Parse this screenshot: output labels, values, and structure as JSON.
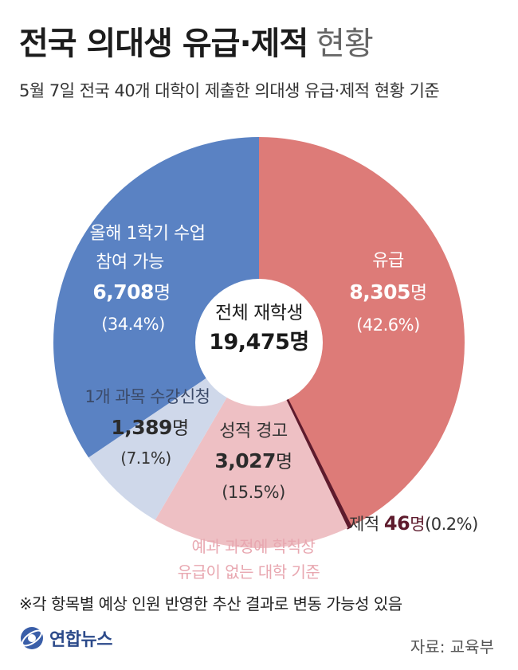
{
  "header": {
    "title_bold": "전국 의대생 유급·제적",
    "title_light": "현황",
    "subtitle": "5월 7일 전국 40개 대학이 제출한 의대생 유급·제적 현황 기준"
  },
  "colors": {
    "yugeup": "#dd7b78",
    "jejeok": "#5e1b2d",
    "warning": "#eec0c4",
    "one_course": "#cfd8ea",
    "participate": "#5a82c3"
  },
  "chart_data": {
    "type": "pie",
    "style": "donut",
    "center_label": "전체 재학생",
    "center_value": "19,475명",
    "total": 19475,
    "slices": [
      {
        "key": "yugeup",
        "label": "유급",
        "value": 8305,
        "value_text": "8,305",
        "unit": "명",
        "percent_text": "(42.6%)",
        "color": "#dd7b78"
      },
      {
        "key": "jejeok",
        "label": "제적",
        "value": 46,
        "value_text": "46",
        "unit": "명",
        "percent_text": "(0.2%)",
        "color": "#5e1b2d"
      },
      {
        "key": "warning",
        "label": "성적 경고",
        "value": 3027,
        "value_text": "3,027",
        "unit": "명",
        "percent_text": "(15.5%)",
        "color": "#eec0c4"
      },
      {
        "key": "one_course",
        "label": "1개 과목 수강신청",
        "value": 1389,
        "value_text": "1,389",
        "unit": "명",
        "percent_text": "(7.1%)",
        "color": "#cfd8ea"
      },
      {
        "key": "participate",
        "label": "올해 1학기 수업|참여 가능",
        "value": 6708,
        "value_text": "6,708",
        "unit": "명",
        "percent_text": "(34.4%)",
        "color": "#5a82c3"
      }
    ],
    "annotation": "예과 과정에 학칙상|유급이 없는 대학 기준"
  },
  "footer": {
    "note": "※각 항목별 예상 인원 반영한 추산 결과로 변동 가능성 있음",
    "logo_text": "연합뉴스",
    "source": "자료: 교육부"
  }
}
